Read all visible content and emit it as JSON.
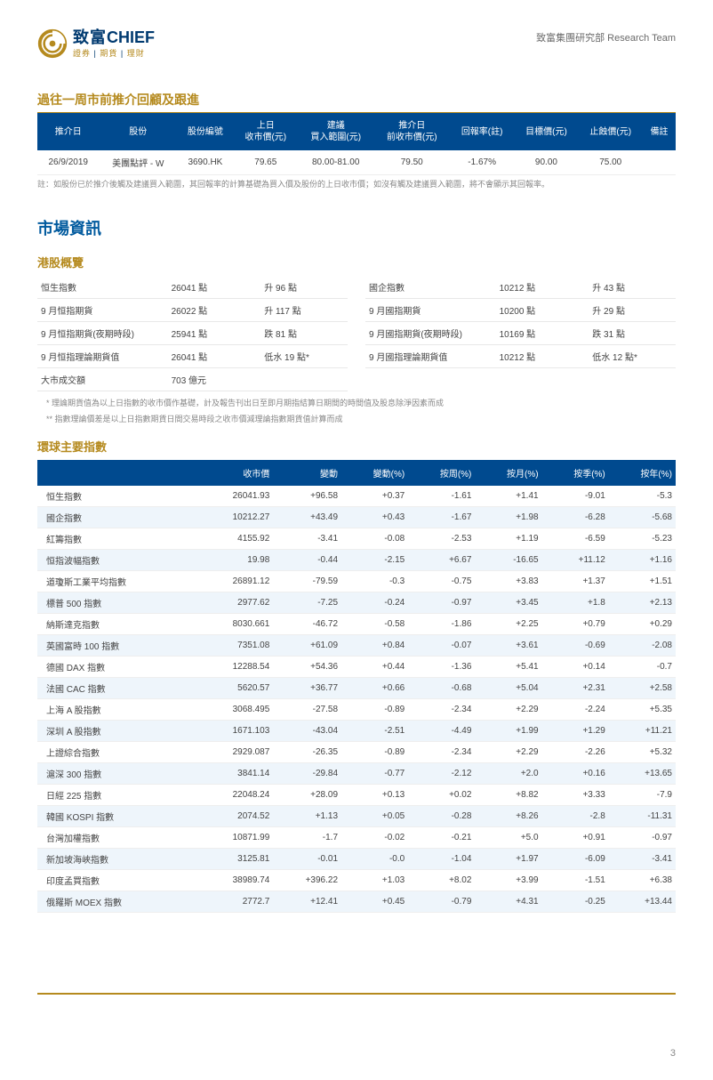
{
  "header": {
    "logo_cn": "致富",
    "logo_en": "CHIEF",
    "logo_sub_1": "證券",
    "logo_sub_2": "期貨",
    "logo_sub_3": "理財",
    "right": "致富集團研究部  Research Team"
  },
  "review": {
    "title": "過往一周市前推介回顧及跟進",
    "columns": [
      "推介日",
      "股份",
      "股份編號",
      "上日\n收市價(元)",
      "建議\n買入範圍(元)",
      "推介日\n前收市價(元)",
      "回報率(註)",
      "目標價(元)",
      "止蝕價(元)",
      "備註"
    ],
    "row": [
      "26/9/2019",
      "美團點評 - W",
      "3690.HK",
      "79.65",
      "80.00-81.00",
      "79.50",
      "-1.67%",
      "90.00",
      "75.00",
      ""
    ],
    "note": "註：如股份已於推介後觸及建議買入範圍，其回報率的計算基礎為買入價及股份的上日收市價；如沒有觸及建議買入範圍，將不會顯示其回報率。"
  },
  "market_title": "市場資訊",
  "hk": {
    "title": "港股概覽",
    "left": [
      [
        "恒生指數",
        "26041 點",
        "升 96 點"
      ],
      [
        "9 月恒指期貨",
        "26022 點",
        "升 117 點"
      ],
      [
        "9 月恒指期貨(夜期時段)",
        "25941 點",
        "跌 81 點"
      ],
      [
        "9 月恒指理論期貨值",
        "26041 點",
        "低水 19 點*"
      ],
      [
        "大市成交額",
        "703 億元",
        ""
      ]
    ],
    "right": [
      [
        "國企指數",
        "10212 點",
        "升 43 點"
      ],
      [
        "9 月國指期貨",
        "10200 點",
        "升 29 點"
      ],
      [
        "9 月國指期貨(夜期時段)",
        "10169 點",
        "跌 31 點"
      ],
      [
        "9 月國指理論期貨值",
        "10212 點",
        "低水 12 點*"
      ]
    ],
    "note1": "*  理論期貨值為以上日指數的收市價作基礎，計及報告刊出日至即月期指結算日期間的時間值及股息除淨因素而成",
    "note2": "** 指數理論價差是以上日指數期貨日間交易時段之收市價減理論指數期貨值計算而成"
  },
  "global": {
    "title": "環球主要指數",
    "columns": [
      "",
      "收市價",
      "變動",
      "變動(%)",
      "按周(%)",
      "按月(%)",
      "按季(%)",
      "按年(%)"
    ],
    "rows": [
      [
        "恒生指數",
        "26041.93",
        "+96.58",
        "+0.37",
        "-1.61",
        "+1.41",
        "-9.01",
        "-5.3"
      ],
      [
        "國企指數",
        "10212.27",
        "+43.49",
        "+0.43",
        "-1.67",
        "+1.98",
        "-6.28",
        "-5.68"
      ],
      [
        "紅籌指數",
        "4155.92",
        "-3.41",
        "-0.08",
        "-2.53",
        "+1.19",
        "-6.59",
        "-5.23"
      ],
      [
        "恒指波幅指數",
        "19.98",
        "-0.44",
        "-2.15",
        "+6.67",
        "-16.65",
        "+11.12",
        "+1.16"
      ],
      [
        "道瓊斯工業平均指數",
        "26891.12",
        "-79.59",
        "-0.3",
        "-0.75",
        "+3.83",
        "+1.37",
        "+1.51"
      ],
      [
        "標普 500 指數",
        "2977.62",
        "-7.25",
        "-0.24",
        "-0.97",
        "+3.45",
        "+1.8",
        "+2.13"
      ],
      [
        "納斯達克指數",
        "8030.661",
        "-46.72",
        "-0.58",
        "-1.86",
        "+2.25",
        "+0.79",
        "+0.29"
      ],
      [
        "英國富時 100 指數",
        "7351.08",
        "+61.09",
        "+0.84",
        "-0.07",
        "+3.61",
        "-0.69",
        "-2.08"
      ],
      [
        "德國 DAX 指數",
        "12288.54",
        "+54.36",
        "+0.44",
        "-1.36",
        "+5.41",
        "+0.14",
        "-0.7"
      ],
      [
        "法國 CAC 指數",
        "5620.57",
        "+36.77",
        "+0.66",
        "-0.68",
        "+5.04",
        "+2.31",
        "+2.58"
      ],
      [
        "上海 A 股指數",
        "3068.495",
        "-27.58",
        "-0.89",
        "-2.34",
        "+2.29",
        "-2.24",
        "+5.35"
      ],
      [
        "深圳 A 股指數",
        "1671.103",
        "-43.04",
        "-2.51",
        "-4.49",
        "+1.99",
        "+1.29",
        "+11.21"
      ],
      [
        "上證綜合指數",
        "2929.087",
        "-26.35",
        "-0.89",
        "-2.34",
        "+2.29",
        "-2.26",
        "+5.32"
      ],
      [
        "滬深 300 指數",
        "3841.14",
        "-29.84",
        "-0.77",
        "-2.12",
        "+2.0",
        "+0.16",
        "+13.65"
      ],
      [
        "日經 225 指數",
        "22048.24",
        "+28.09",
        "+0.13",
        "+0.02",
        "+8.82",
        "+3.33",
        "-7.9"
      ],
      [
        "韓國 KOSPI 指數",
        "2074.52",
        "+1.13",
        "+0.05",
        "-0.28",
        "+8.26",
        "-2.8",
        "-11.31"
      ],
      [
        "台灣加權指數",
        "10871.99",
        "-1.7",
        "-0.02",
        "-0.21",
        "+5.0",
        "+0.91",
        "-0.97"
      ],
      [
        "新加坡海峽指數",
        "3125.81",
        "-0.01",
        "-0.0",
        "-1.04",
        "+1.97",
        "-6.09",
        "-3.41"
      ],
      [
        "印度孟買指數",
        "38989.74",
        "+396.22",
        "+1.03",
        "+8.02",
        "+3.99",
        "-1.51",
        "+6.38"
      ],
      [
        "俄羅斯 MOEX 指數",
        "2772.7",
        "+12.41",
        "+0.45",
        "-0.79",
        "+4.31",
        "-0.25",
        "+13.44"
      ]
    ]
  },
  "page_number": "3"
}
